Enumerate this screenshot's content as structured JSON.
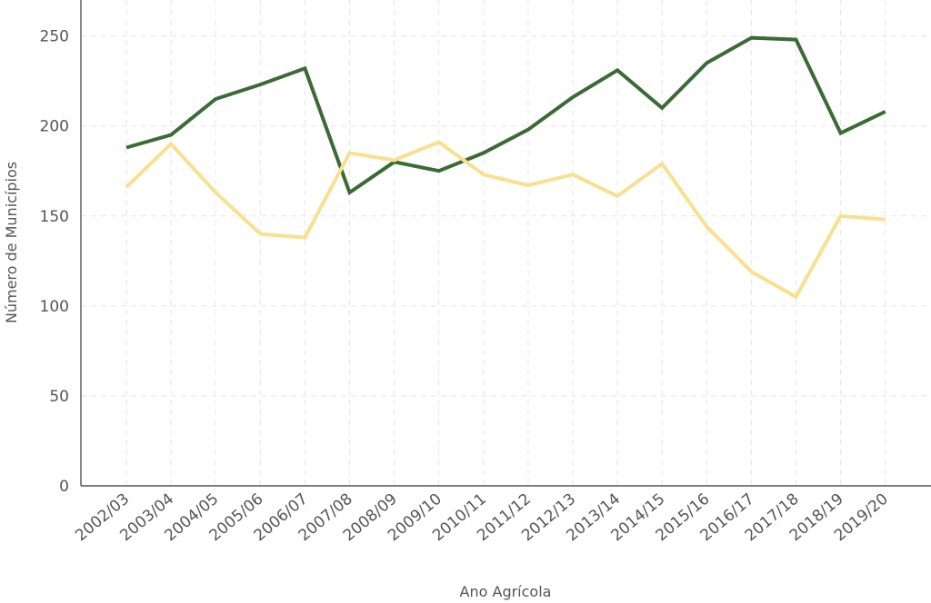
{
  "chart_data": {
    "type": "line",
    "xlabel": "Ano Agrícola",
    "ylabel": "Número de Municípios",
    "ylim": [
      0,
      270
    ],
    "yticks": [
      0,
      50,
      100,
      150,
      200,
      250
    ],
    "grid": true,
    "legend": "none",
    "categories": [
      "2002/03",
      "2003/04",
      "2004/05",
      "2005/06",
      "2006/07",
      "2007/08",
      "2008/09",
      "2009/10",
      "2010/11",
      "2011/12",
      "2012/13",
      "2013/14",
      "2014/15",
      "2015/16",
      "2016/17",
      "2017/18",
      "2018/19",
      "2019/20"
    ],
    "series": [
      {
        "color": "#3a6b35",
        "values": [
          188,
          195,
          215,
          223,
          232,
          163,
          180,
          175,
          185,
          198,
          216,
          231,
          210,
          235,
          249,
          248,
          196,
          208
        ]
      },
      {
        "color": "#f7e08f",
        "values": [
          166,
          190,
          163,
          140,
          138,
          185,
          181,
          191,
          173,
          167,
          173,
          161,
          179,
          144,
          119,
          105,
          150,
          148
        ]
      }
    ]
  }
}
